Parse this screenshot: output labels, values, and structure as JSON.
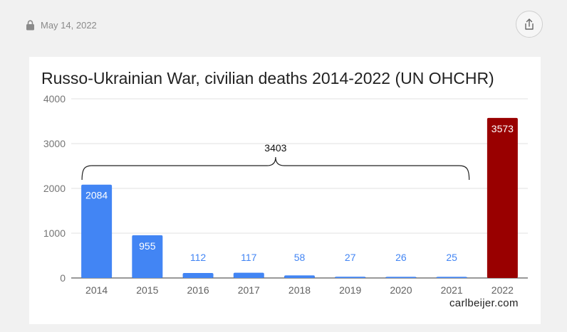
{
  "post": {
    "date": "May 14, 2022",
    "lock_icon": "lock-icon",
    "share_icon": "share-icon"
  },
  "credit": "carlbeijer.com",
  "colors": {
    "bar": "#4285f4",
    "highlight": "#990000",
    "grid": "#e0e0e0"
  },
  "chart_data": {
    "type": "bar",
    "title": "Russo-Ukrainian War, civilian deaths 2014-2022 (UN OHCHR)",
    "xlabel": "",
    "ylabel": "",
    "categories": [
      "2014",
      "2015",
      "2016",
      "2017",
      "2018",
      "2019",
      "2020",
      "2021",
      "2022"
    ],
    "values": [
      2084,
      955,
      112,
      117,
      58,
      27,
      26,
      25,
      3573
    ],
    "ylim": [
      0,
      4000
    ],
    "yticks": [
      0,
      1000,
      2000,
      3000,
      4000
    ],
    "grid": true,
    "highlight_category": "2022",
    "annotation": {
      "text": "3403",
      "span": [
        "2014",
        "2021"
      ]
    }
  }
}
